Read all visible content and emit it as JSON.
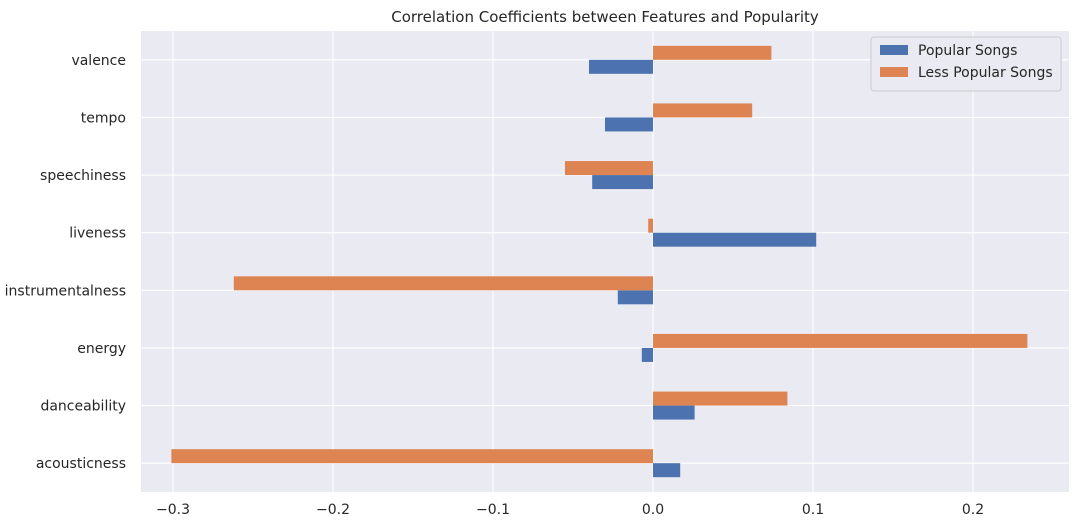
{
  "chart_data": {
    "type": "bar",
    "orientation": "horizontal",
    "title": "Correlation Coefficients between Features and Popularity",
    "xlabel": "",
    "ylabel": "",
    "categories": [
      "acousticness",
      "danceability",
      "energy",
      "instrumentalness",
      "liveness",
      "speechiness",
      "tempo",
      "valence"
    ],
    "series": [
      {
        "name": "Popular Songs",
        "color": "#4c72b0",
        "values": [
          0.017,
          0.026,
          -0.007,
          -0.022,
          0.102,
          -0.038,
          -0.03,
          -0.04
        ]
      },
      {
        "name": "Less Popular Songs",
        "color": "#dd8452",
        "values": [
          -0.301,
          0.084,
          0.234,
          -0.262,
          -0.003,
          -0.055,
          0.062,
          0.074
        ]
      }
    ],
    "xlim": [
      -0.32,
      0.26
    ],
    "xticks": [
      -0.3,
      -0.2,
      -0.1,
      0.0,
      0.1,
      0.2
    ],
    "xtick_labels": [
      "−0.3",
      "−0.2",
      "−0.1",
      "0.0",
      "0.1",
      "0.2"
    ],
    "grid": true,
    "background": "#eaeaf2",
    "legend_position": "top-right"
  }
}
